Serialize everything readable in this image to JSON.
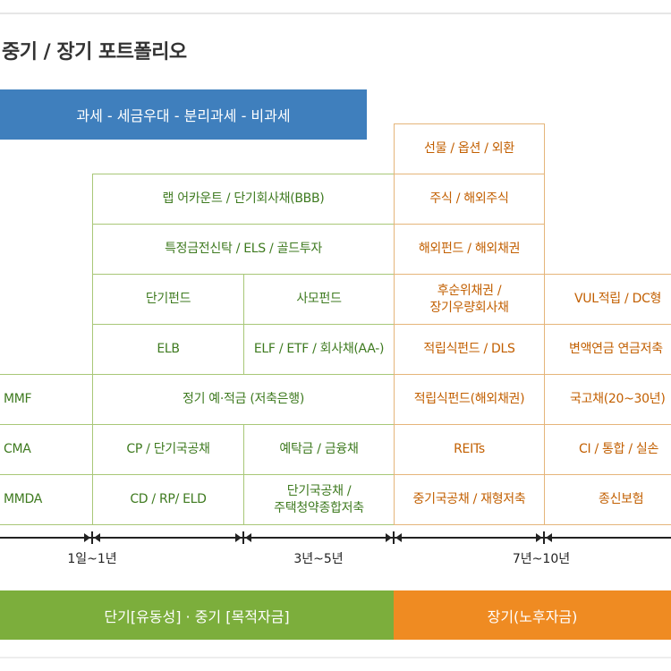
{
  "title": "중기 / 장기 포트폴리오",
  "banner": "과세 - 세금우대 - 분리과세 - 비과세",
  "cells": {
    "futures": "선물 / 옵션 / 외환",
    "wrap": "랩 어카운트 / 단기회사채(BBB)",
    "stocks": "주식 / 해외주식",
    "trust": "특정금전신탁 / ELS / 골드투자",
    "overseas_fund": "해외펀드 / 해외채권",
    "short_fund": "단기펀드",
    "private_fund": "사모펀드",
    "subordinated": [
      "후순위채권 /",
      "장기우량회사채"
    ],
    "vul": "VUL적립 / DC형",
    "elb": "ELB",
    "elf": "ELF / ETF / 회사채(AA-)",
    "dls": "적립식펀드 / DLS",
    "variable_annuity": "변액연금 연금저축",
    "mmf": "MMF",
    "deposit": "정기 예·적금 (저축은행)",
    "overseas_bond_fund": "적립식펀드(해외채권)",
    "govt_bond": "국고채(20~30년)",
    "cma": "CMA",
    "cp": "CP / 단기국공채",
    "deposits_finance": "예탁금 / 금융채",
    "reits": "REITs",
    "ci": "CI / 통합 / 실손",
    "mmda": "MMDA",
    "cd": "CD / RP/ ELD",
    "short_govt": [
      "단기국공채 /",
      "주택청약종합저축"
    ],
    "mid_govt": "중기국공채 / 재형저축",
    "life_insurance": "종신보험"
  },
  "axis": {
    "labels": [
      "1일~1년",
      "3년~5년",
      "7년~10년"
    ]
  },
  "bottom": {
    "short_mid": "단기[유동성] · 중기 [목적자금]",
    "long": "장기(노후자금)"
  },
  "colors": {
    "banner": "#3f7fbd",
    "green_text": "#3e7a1f",
    "orange_text": "#c25f00",
    "green_bar": "#7cae3c",
    "orange_bar": "#ef8b22"
  }
}
